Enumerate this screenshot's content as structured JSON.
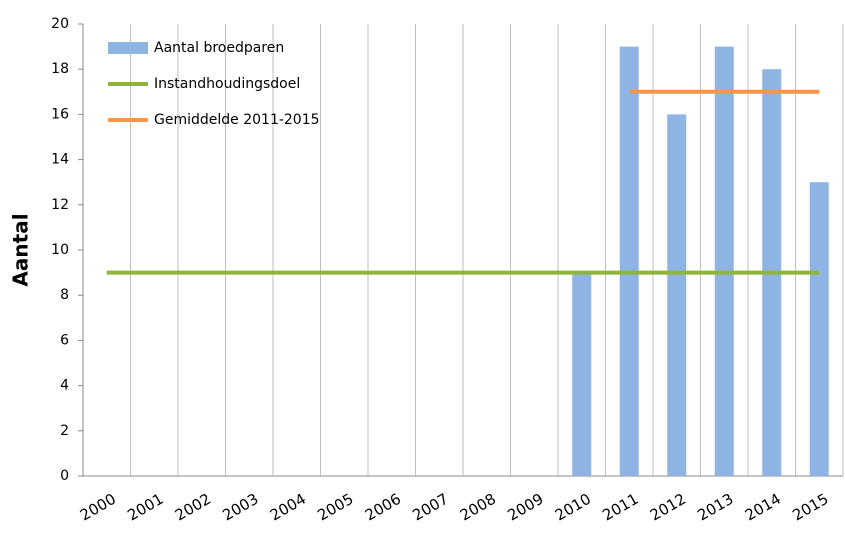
{
  "chart_data": {
    "type": "bar",
    "y_label": "Aantal",
    "categories": [
      "2000",
      "2001",
      "2002",
      "2003",
      "2004",
      "2005",
      "2006",
      "2007",
      "2008",
      "2009",
      "2010",
      "2011",
      "2012",
      "2013",
      "2014",
      "2015"
    ],
    "series": [
      {
        "name": "Aantal broedparen",
        "type": "bar",
        "color": "#8db4e2",
        "values": [
          null,
          null,
          null,
          null,
          null,
          null,
          null,
          null,
          null,
          null,
          9,
          19,
          16,
          19,
          18,
          13
        ]
      },
      {
        "name": "Instandhoudingsdoel",
        "type": "line",
        "color": "#8db53c",
        "values": [
          9,
          9,
          9,
          9,
          9,
          9,
          9,
          9,
          9,
          9,
          9,
          9,
          9,
          9,
          9,
          9
        ]
      },
      {
        "name": "Gemiddelde 2011-2015",
        "type": "line",
        "color": "#f79646",
        "values": [
          null,
          null,
          null,
          null,
          null,
          null,
          null,
          null,
          null,
          null,
          null,
          17,
          17,
          17,
          17,
          17
        ]
      }
    ],
    "ylim": [
      0,
      20
    ],
    "yticks": [
      0,
      2,
      4,
      6,
      8,
      10,
      12,
      14,
      16,
      18,
      20
    ],
    "grid": "vertical",
    "legend": "top-left"
  }
}
